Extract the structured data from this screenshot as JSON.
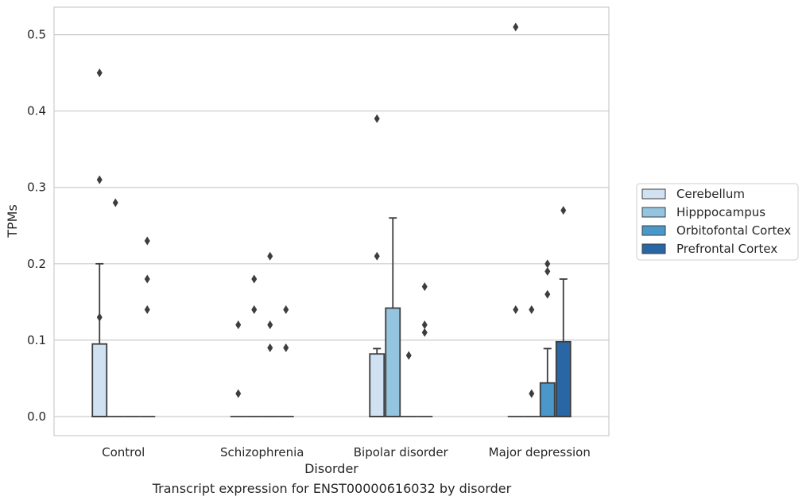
{
  "chart_data": {
    "type": "box",
    "caption": "Transcript expression for ENST00000616032 by disorder",
    "xlabel": "Disorder",
    "ylabel": "TPMs",
    "ylim": [
      -0.025,
      0.536
    ],
    "yticks": [
      "0.0",
      "0.1",
      "0.2",
      "0.3",
      "0.4",
      "0.5"
    ],
    "grid": true,
    "legend_position": "right",
    "categories": [
      "Control",
      "Schizophrenia",
      "Bipolar disorder",
      "Major depression"
    ],
    "series": [
      {
        "name": "Cerebellum",
        "color": "#d0e1f2",
        "boxes": [
          {
            "q1": 0,
            "median": 0,
            "q3": 0.095,
            "whisker_high": 0.2,
            "outliers": [
              0.45,
              0.31,
              0.13
            ]
          },
          {
            "q1": 0,
            "median": 0,
            "q3": 0,
            "whisker_high": 0,
            "outliers": [
              0.12,
              0.03
            ]
          },
          {
            "q1": 0,
            "median": 0,
            "q3": 0.082,
            "whisker_high": 0.089,
            "outliers": [
              0.39,
              0.21
            ]
          },
          {
            "q1": 0,
            "median": 0,
            "q3": 0,
            "whisker_high": 0,
            "outliers": [
              0.51,
              0.14
            ]
          }
        ]
      },
      {
        "name": "Hipppocampus",
        "color": "#94c4df",
        "boxes": [
          {
            "q1": 0,
            "median": 0,
            "q3": 0,
            "whisker_high": 0,
            "outliers": [
              0.28
            ]
          },
          {
            "q1": 0,
            "median": 0,
            "q3": 0,
            "whisker_high": 0,
            "outliers": [
              0.18,
              0.14
            ]
          },
          {
            "q1": 0,
            "median": 0,
            "q3": 0.142,
            "whisker_high": 0.26,
            "outliers": []
          },
          {
            "q1": 0,
            "median": 0,
            "q3": 0,
            "whisker_high": 0,
            "outliers": [
              0.14,
              0.03
            ]
          }
        ]
      },
      {
        "name": "Orbitofontal Cortex",
        "color": "#4a98c9",
        "boxes": [
          {
            "q1": 0,
            "median": 0,
            "q3": 0,
            "whisker_high": 0,
            "outliers": []
          },
          {
            "q1": 0,
            "median": 0,
            "q3": 0,
            "whisker_high": 0,
            "outliers": [
              0.21,
              0.12,
              0.09
            ]
          },
          {
            "q1": 0,
            "median": 0,
            "q3": 0,
            "whisker_high": 0,
            "outliers": [
              0.08
            ]
          },
          {
            "q1": 0,
            "median": 0,
            "q3": 0.044,
            "whisker_high": 0.089,
            "outliers": [
              0.2,
              0.19,
              0.16
            ]
          }
        ]
      },
      {
        "name": "Prefrontal Cortex",
        "color": "#2866a5",
        "boxes": [
          {
            "q1": 0,
            "median": 0,
            "q3": 0,
            "whisker_high": 0,
            "outliers": [
              0.23,
              0.18,
              0.14
            ]
          },
          {
            "q1": 0,
            "median": 0,
            "q3": 0,
            "whisker_high": 0,
            "outliers": [
              0.14,
              0.09
            ]
          },
          {
            "q1": 0,
            "median": 0,
            "q3": 0,
            "whisker_high": 0,
            "outliers": [
              0.17,
              0.12,
              0.11
            ]
          },
          {
            "q1": 0,
            "median": 0,
            "q3": 0.098,
            "whisker_high": 0.18,
            "outliers": [
              0.27
            ]
          }
        ]
      }
    ]
  }
}
